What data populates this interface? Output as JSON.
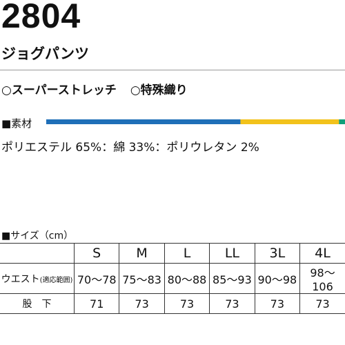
{
  "header": {
    "model": "2804",
    "name": "ジョグパンツ"
  },
  "features": [
    "○スーパーストレッチ",
    "○特殊織り"
  ],
  "material": {
    "heading": "■素材",
    "separator": "：",
    "items": [
      {
        "name": "ポリエステル",
        "value": 65,
        "label": "65%",
        "color": "#1f6fb8"
      },
      {
        "name": "綿",
        "value": 33,
        "label": "33%",
        "color": "#f2c21b"
      },
      {
        "name": "ポリウレタン",
        "value": 2,
        "label": "2%",
        "color": "#10a07a"
      }
    ]
  },
  "sizes": {
    "heading": "■サイズ（cm）",
    "columns": [
      "S",
      "M",
      "L",
      "LL",
      "3L",
      "4L"
    ],
    "rows": [
      {
        "label": "ウエスト",
        "sublabel": "(適応範囲)",
        "cells": [
          "70〜78",
          "75〜83",
          "80〜88",
          "85〜93",
          "90〜98",
          "98〜106"
        ]
      },
      {
        "label": "股　下",
        "cells": [
          71,
          73,
          73,
          73,
          73,
          73
        ]
      }
    ]
  }
}
